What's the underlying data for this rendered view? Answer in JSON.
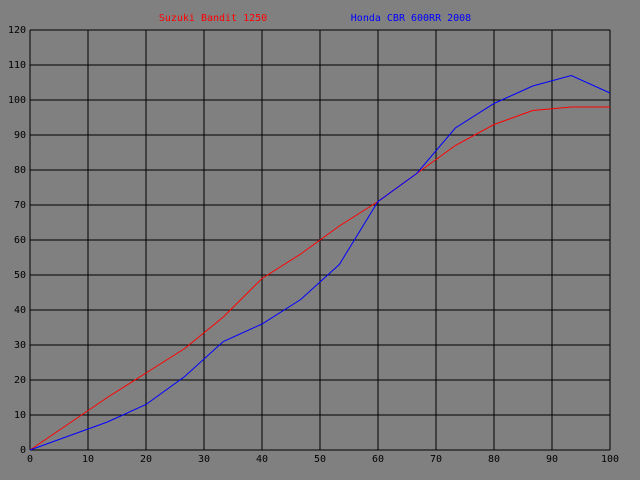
{
  "chart_data": {
    "type": "line",
    "x": [
      0,
      6.67,
      13.33,
      20,
      26.67,
      33.33,
      40,
      46.67,
      53.33,
      60,
      66.67,
      73.33,
      80,
      86.67,
      93.33,
      100
    ],
    "series": [
      {
        "name": "Suzuki Bandit 1250",
        "color": "#ff0000",
        "values": [
          0,
          7.5,
          15,
          22,
          29,
          38,
          49,
          56,
          64,
          71,
          79,
          87,
          93,
          97,
          98,
          98
        ]
      },
      {
        "name": "Honda CBR 600RR 2008",
        "color": "#0000ff",
        "values": [
          0,
          4,
          8,
          13,
          21,
          31,
          36,
          43,
          53,
          71,
          79,
          92,
          99,
          104,
          107,
          102
        ]
      }
    ],
    "xlim": [
      0,
      100
    ],
    "xticks": [
      0,
      10,
      20,
      30,
      40,
      50,
      60,
      70,
      80,
      90,
      100
    ],
    "ylim": [
      0,
      120
    ],
    "yticks": [
      0,
      10,
      20,
      30,
      40,
      50,
      60,
      70,
      80,
      90,
      100,
      110,
      120
    ],
    "grid": true,
    "legend": "top"
  }
}
